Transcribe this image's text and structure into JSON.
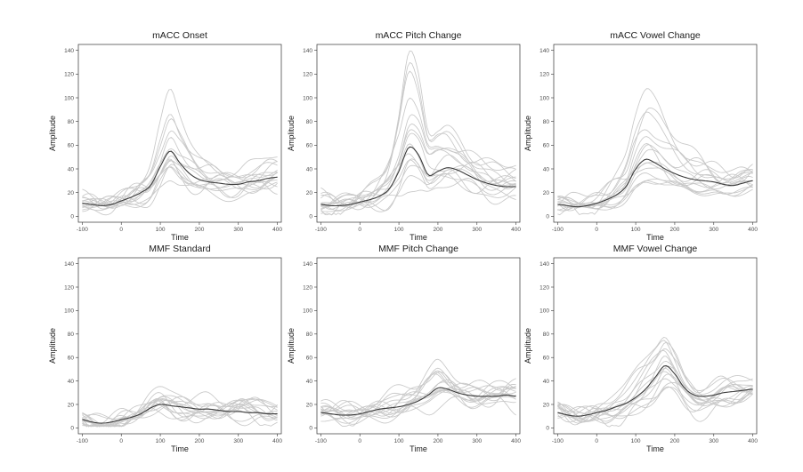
{
  "figure": {
    "background": "#ffffff",
    "trial_color": "#c8c8c8",
    "mean_color": "#3a3a3a"
  },
  "chart_data": [
    {
      "type": "line",
      "title": "mACC Onset",
      "xlabel": "Time",
      "ylabel": "Amplitude",
      "xlim": [
        -110,
        410
      ],
      "ylim": [
        -5,
        145
      ],
      "xticks": [
        -100,
        0,
        100,
        200,
        300,
        400
      ],
      "yticks": [
        0,
        20,
        40,
        60,
        80,
        100,
        120,
        140
      ],
      "x": [
        -100,
        -75,
        -50,
        -25,
        0,
        25,
        50,
        75,
        100,
        125,
        150,
        175,
        200,
        225,
        250,
        275,
        300,
        325,
        350,
        375,
        400
      ],
      "mean": [
        11,
        10,
        9,
        10,
        13,
        16,
        20,
        26,
        42,
        55,
        45,
        36,
        31,
        29,
        28,
        27,
        27,
        29,
        30,
        32,
        33
      ],
      "trial_peaks": [
        99,
        88,
        80,
        72,
        66,
        61,
        58,
        55,
        52,
        48,
        45,
        42,
        39,
        36,
        33
      ],
      "n_trials": 15
    },
    {
      "type": "line",
      "title": "mACC Pitch Change",
      "xlabel": "Time",
      "ylabel": "Amplitude",
      "xlim": [
        -110,
        410
      ],
      "ylim": [
        -5,
        145
      ],
      "xticks": [
        -100,
        0,
        100,
        200,
        300,
        400
      ],
      "yticks": [
        0,
        20,
        40,
        60,
        80,
        100,
        120,
        140
      ],
      "x": [
        -100,
        -75,
        -50,
        -25,
        0,
        25,
        50,
        75,
        100,
        125,
        150,
        175,
        200,
        225,
        250,
        275,
        300,
        325,
        350,
        375,
        400
      ],
      "mean": [
        10,
        9,
        9,
        10,
        12,
        14,
        17,
        23,
        38,
        58,
        52,
        35,
        38,
        41,
        39,
        35,
        31,
        28,
        26,
        25,
        25
      ],
      "trial_peaks": [
        131,
        124,
        112,
        100,
        90,
        82,
        75,
        68,
        62,
        56,
        50,
        45,
        40,
        35,
        30
      ],
      "n_trials": 15
    },
    {
      "type": "line",
      "title": "mACC Vowel Change",
      "xlabel": "Time",
      "ylabel": "Amplitude",
      "xlim": [
        -110,
        410
      ],
      "ylim": [
        -5,
        145
      ],
      "xticks": [
        -100,
        0,
        100,
        200,
        300,
        400
      ],
      "yticks": [
        0,
        20,
        40,
        60,
        80,
        100,
        120,
        140
      ],
      "x": [
        -100,
        -75,
        -50,
        -25,
        0,
        25,
        50,
        75,
        100,
        125,
        150,
        175,
        200,
        225,
        250,
        275,
        300,
        325,
        350,
        375,
        400
      ],
      "mean": [
        10,
        9,
        8,
        9,
        11,
        14,
        18,
        25,
        40,
        48,
        45,
        40,
        36,
        33,
        31,
        30,
        29,
        27,
        26,
        28,
        30
      ],
      "trial_peaks": [
        103,
        92,
        84,
        76,
        68,
        62,
        56,
        51,
        47,
        43,
        39,
        36,
        33,
        30,
        28
      ],
      "n_trials": 15
    },
    {
      "type": "line",
      "title": "MMF Standard",
      "xlabel": "Time",
      "ylabel": "Amplitude",
      "xlim": [
        -110,
        410
      ],
      "ylim": [
        -5,
        145
      ],
      "xticks": [
        -100,
        0,
        100,
        200,
        300,
        400
      ],
      "yticks": [
        0,
        20,
        40,
        60,
        80,
        100,
        120,
        140
      ],
      "x": [
        -100,
        -75,
        -50,
        -25,
        0,
        25,
        50,
        75,
        100,
        125,
        150,
        175,
        200,
        225,
        250,
        275,
        300,
        325,
        350,
        375,
        400
      ],
      "mean": [
        7,
        5,
        4,
        5,
        7,
        9,
        12,
        17,
        20,
        19,
        18,
        17,
        16,
        16,
        15,
        14,
        14,
        13,
        13,
        12,
        12
      ],
      "trial_peaks": [
        28,
        26,
        25,
        24,
        23,
        22,
        21,
        20,
        19,
        18,
        17,
        16,
        15,
        14,
        13
      ],
      "n_trials": 15
    },
    {
      "type": "line",
      "title": "MMF Pitch Change",
      "xlabel": "Time",
      "ylabel": "Amplitude",
      "xlim": [
        -110,
        410
      ],
      "ylim": [
        -5,
        145
      ],
      "xticks": [
        -100,
        0,
        100,
        200,
        300,
        400
      ],
      "yticks": [
        0,
        20,
        40,
        60,
        80,
        100,
        120,
        140
      ],
      "x": [
        -100,
        -75,
        -50,
        -25,
        0,
        25,
        50,
        75,
        100,
        125,
        150,
        175,
        200,
        225,
        250,
        275,
        300,
        325,
        350,
        375,
        400
      ],
      "mean": [
        13,
        12,
        11,
        11,
        12,
        14,
        16,
        17,
        18,
        20,
        23,
        28,
        34,
        33,
        30,
        28,
        27,
        27,
        27,
        28,
        27
      ],
      "trial_peaks": [
        56,
        52,
        49,
        46,
        43,
        41,
        39,
        37,
        35,
        33,
        31,
        29,
        27,
        25,
        23
      ],
      "n_trials": 15
    },
    {
      "type": "line",
      "title": "MMF Vowel Change",
      "xlabel": "Time",
      "ylabel": "Amplitude",
      "xlim": [
        -110,
        410
      ],
      "ylim": [
        -5,
        145
      ],
      "xticks": [
        -100,
        0,
        100,
        200,
        300,
        400
      ],
      "yticks": [
        0,
        20,
        40,
        60,
        80,
        100,
        120,
        140
      ],
      "x": [
        -100,
        -75,
        -50,
        -25,
        0,
        25,
        50,
        75,
        100,
        125,
        150,
        175,
        200,
        225,
        250,
        275,
        300,
        325,
        350,
        375,
        400
      ],
      "mean": [
        13,
        11,
        10,
        11,
        13,
        15,
        18,
        21,
        26,
        33,
        43,
        53,
        46,
        34,
        28,
        27,
        28,
        30,
        31,
        32,
        33
      ],
      "trial_peaks": [
        89,
        82,
        76,
        70,
        65,
        60,
        56,
        52,
        48,
        44,
        40,
        37,
        34,
        31,
        28
      ],
      "n_trials": 15
    }
  ]
}
